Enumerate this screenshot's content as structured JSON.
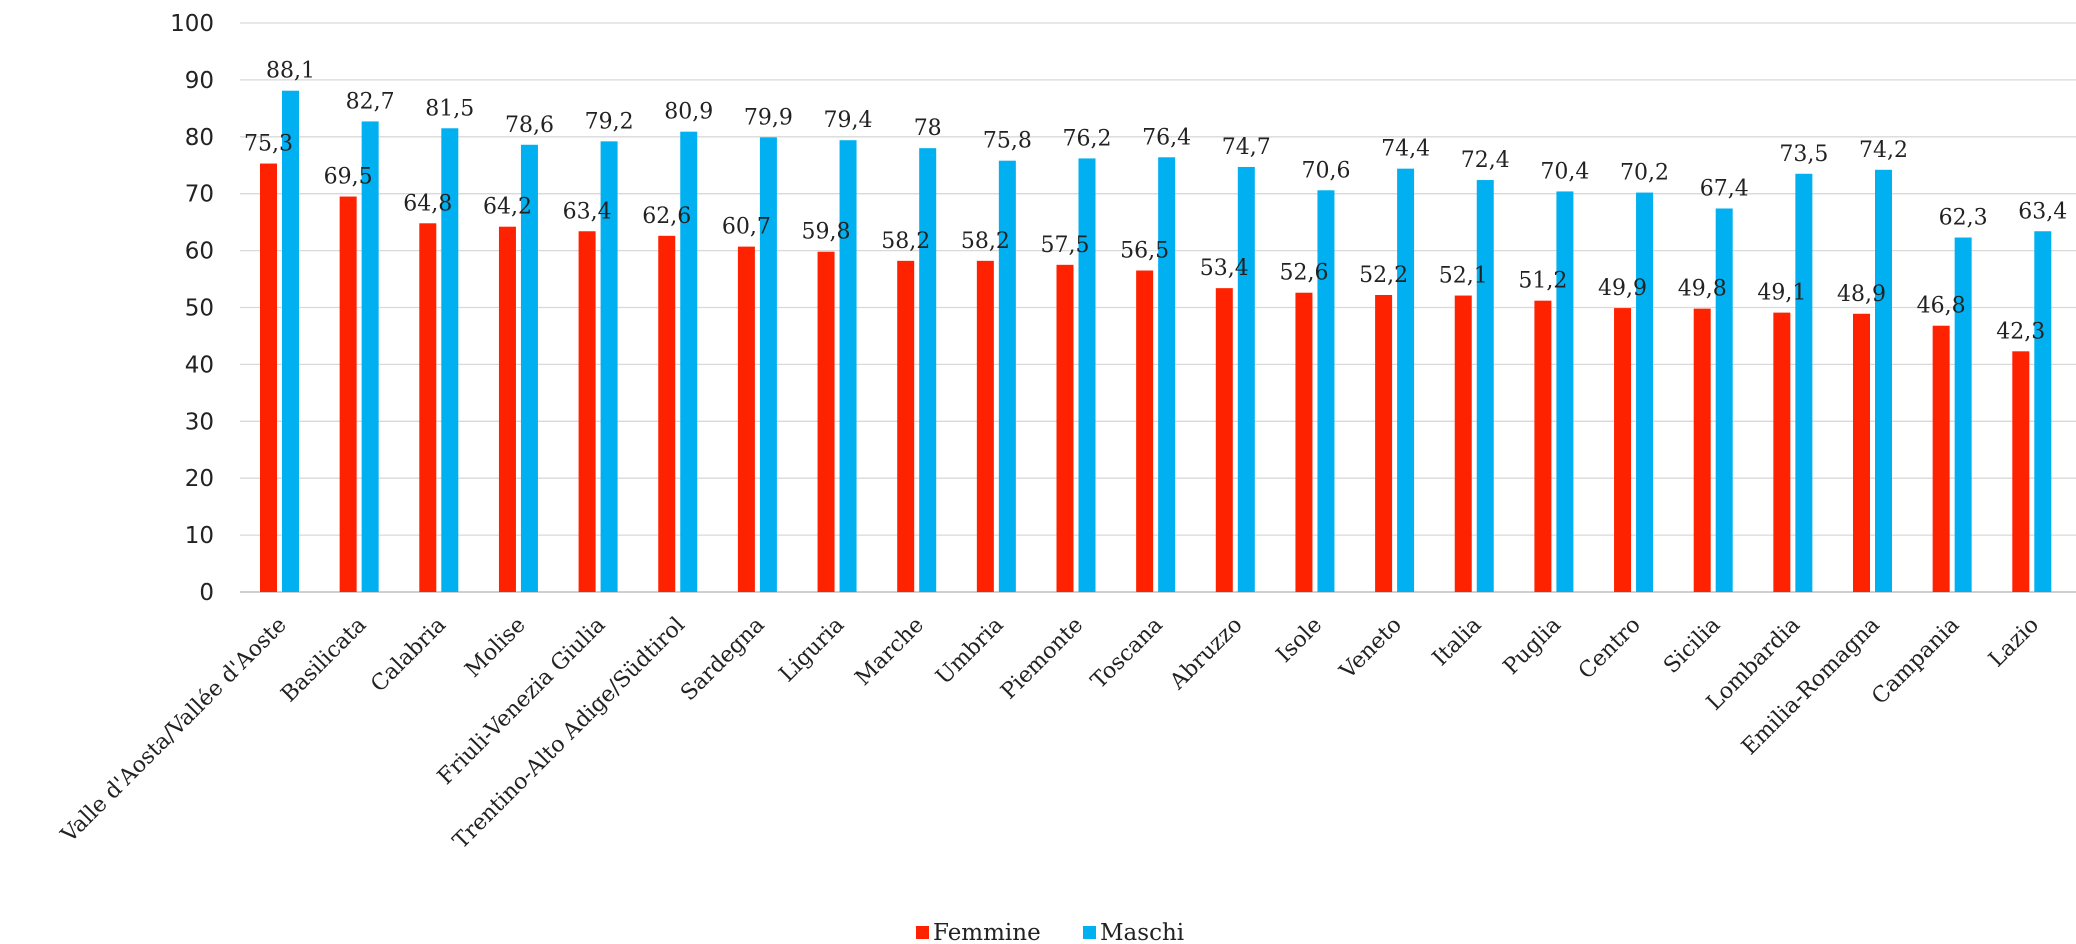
{
  "chart_data": {
    "type": "bar",
    "categories": [
      "Valle d'Aosta/Vallée d'Aoste",
      "Basilicata",
      "Calabria",
      "Molise",
      "Friuli-Venezia Giulia",
      "Trentino-Alto Adige/Südtirol",
      "Sardegna",
      "Liguria",
      "Marche",
      "Umbria",
      "Piemonte",
      "Toscana",
      "Abruzzo",
      "Isole",
      "Veneto",
      "Italia",
      "Puglia",
      "Centro",
      "Sicilia",
      "Lombardia",
      "Emilia-Romagna",
      "Campania",
      "Lazio"
    ],
    "series": [
      {
        "name": "Femmine",
        "color": "#ff2200",
        "values": [
          75.3,
          69.5,
          64.8,
          64.2,
          63.4,
          62.6,
          60.7,
          59.8,
          58.2,
          58.2,
          57.5,
          56.5,
          53.4,
          52.6,
          52.2,
          52.1,
          51.2,
          49.9,
          49.8,
          49.1,
          48.9,
          46.8,
          42.3
        ],
        "labels": [
          "75,3",
          "69,5",
          "64,8",
          "64,2",
          "63,4",
          "62,6",
          "60,7",
          "59,8",
          "58,2",
          "58,2",
          "57,5",
          "56,5",
          "53,4",
          "52,6",
          "52,2",
          "52,1",
          "51,2",
          "49,9",
          "49,8",
          "49,1",
          "48,9",
          "46,8",
          "42,3"
        ]
      },
      {
        "name": "Maschi",
        "color": "#00b0f0",
        "values": [
          88.1,
          82.7,
          81.5,
          78.6,
          79.2,
          80.9,
          79.9,
          79.4,
          78,
          75.8,
          76.2,
          76.4,
          74.7,
          70.6,
          74.4,
          72.4,
          70.4,
          70.2,
          67.4,
          73.5,
          74.2,
          62.3,
          63.4
        ],
        "labels": [
          "88,1",
          "82,7",
          "81,5",
          "78,6",
          "79,2",
          "80,9",
          "79,9",
          "79,4",
          "78",
          "75,8",
          "76,2",
          "76,4",
          "74,7",
          "70,6",
          "74,4",
          "72,4",
          "70,4",
          "70,2",
          "67,4",
          "73,5",
          "74,2",
          "62,3",
          "63,4"
        ]
      }
    ],
    "yticks": [
      "0",
      "10",
      "20",
      "30",
      "40",
      "50",
      "60",
      "70",
      "80",
      "90",
      "100"
    ],
    "ylim": [
      0,
      100
    ],
    "grid": true,
    "legend_position": "bottom-center",
    "title": "",
    "xlabel": "",
    "ylabel": ""
  }
}
